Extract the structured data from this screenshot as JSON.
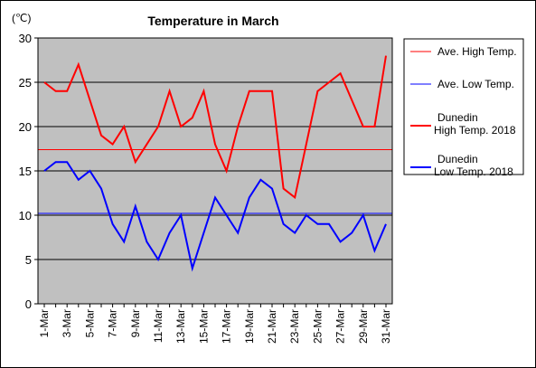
{
  "chart_data": {
    "type": "line",
    "title": "Temperature in March",
    "ylabel": "(℃)",
    "xlabel": "",
    "ylim": [
      0,
      30
    ],
    "yticks": [
      0,
      5,
      10,
      15,
      20,
      25,
      30
    ],
    "grid": true,
    "legend_position": "right",
    "colors": {
      "high": "#ff0000",
      "low": "#0000ff",
      "plot_bg": "#c0c0c0"
    },
    "categories": [
      "1-Mar",
      "2-Mar",
      "3-Mar",
      "4-Mar",
      "5-Mar",
      "6-Mar",
      "7-Mar",
      "8-Mar",
      "9-Mar",
      "10-Mar",
      "11-Mar",
      "12-Mar",
      "13-Mar",
      "14-Mar",
      "15-Mar",
      "16-Mar",
      "17-Mar",
      "18-Mar",
      "19-Mar",
      "20-Mar",
      "21-Mar",
      "22-Mar",
      "23-Mar",
      "24-Mar",
      "25-Mar",
      "26-Mar",
      "27-Mar",
      "28-Mar",
      "29-Mar",
      "30-Mar",
      "31-Mar"
    ],
    "tick_labels": [
      "1-Mar",
      "3-Mar",
      "5-Mar",
      "7-Mar",
      "9-Mar",
      "11-Mar",
      "13-Mar",
      "15-Mar",
      "17-Mar",
      "19-Mar",
      "21-Mar",
      "23-Mar",
      "25-Mar",
      "27-Mar",
      "29-Mar",
      "31-Mar"
    ],
    "series": [
      {
        "name": "Ave. High Temp.",
        "kind": "average",
        "color": "#ff0000",
        "value": 17.4
      },
      {
        "name": "Ave. Low Temp.",
        "kind": "average",
        "color": "#0000ff",
        "value": 10.2
      },
      {
        "name": "Dunedin\nHigh Temp. 2018",
        "kind": "daily",
        "color": "#ff0000",
        "values": [
          25,
          24,
          24,
          27,
          23,
          19,
          18,
          20,
          16,
          18,
          20,
          24,
          20,
          21,
          24,
          18,
          15,
          20,
          24,
          24,
          24,
          13,
          12,
          18,
          24,
          25,
          26,
          23,
          20,
          20,
          28
        ]
      },
      {
        "name": "Dunedin\nLow Temp. 2018",
        "kind": "daily",
        "color": "#0000ff",
        "values": [
          15,
          16,
          16,
          14,
          15,
          13,
          9,
          7,
          11,
          7,
          5,
          8,
          10,
          4,
          8,
          12,
          10,
          8,
          12,
          14,
          13,
          9,
          8,
          10,
          9,
          9,
          7,
          8,
          10,
          6,
          9
        ]
      }
    ]
  }
}
